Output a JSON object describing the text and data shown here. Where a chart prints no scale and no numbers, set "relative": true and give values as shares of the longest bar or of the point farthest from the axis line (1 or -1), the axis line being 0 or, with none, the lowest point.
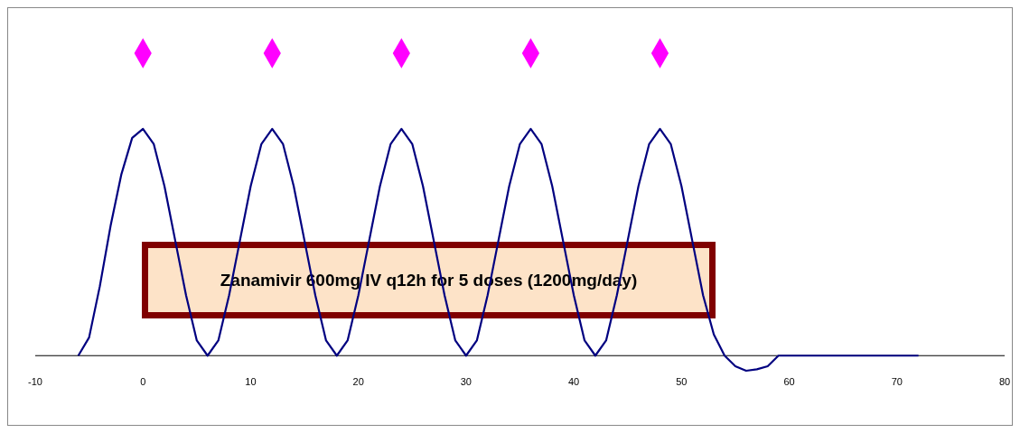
{
  "chart_data": {
    "type": "line",
    "relative": true,
    "xlim": [
      -10,
      80
    ],
    "xticks": [
      -10,
      0,
      10,
      20,
      30,
      40,
      50,
      60,
      70,
      80
    ],
    "grid": false,
    "annotations": [
      "Zanamivir 600mg IV q12h for 5 doses (1200mg/day)"
    ],
    "series": [
      {
        "color": "#000080",
        "marker": "none",
        "line_style": "solid",
        "x": [
          -6,
          -5,
          -4,
          -3,
          -2,
          -1,
          0,
          1,
          2,
          3,
          4,
          5,
          6,
          7,
          8,
          9,
          10,
          11,
          12,
          13,
          14,
          15,
          16,
          17,
          18,
          19,
          20,
          21,
          22,
          23,
          24,
          25,
          26,
          27,
          28,
          29,
          30,
          31,
          32,
          33,
          34,
          35,
          36,
          37,
          38,
          39,
          40,
          41,
          42,
          43,
          44,
          45,
          46,
          47,
          48,
          49,
          50,
          51,
          52,
          53,
          54,
          55,
          56,
          57,
          58,
          59,
          72
        ],
        "values": [
          0,
          0.06,
          0.23,
          0.43,
          0.6,
          0.72,
          0.75,
          0.7,
          0.56,
          0.38,
          0.2,
          0.05,
          0,
          0.05,
          0.2,
          0.38,
          0.56,
          0.7,
          0.75,
          0.7,
          0.56,
          0.38,
          0.2,
          0.05,
          0,
          0.05,
          0.2,
          0.38,
          0.56,
          0.7,
          0.75,
          0.7,
          0.56,
          0.38,
          0.2,
          0.05,
          0,
          0.05,
          0.2,
          0.38,
          0.56,
          0.7,
          0.75,
          0.7,
          0.56,
          0.38,
          0.2,
          0.05,
          0,
          0.05,
          0.2,
          0.38,
          0.56,
          0.7,
          0.75,
          0.7,
          0.56,
          0.38,
          0.2,
          0.07,
          0,
          -0.035,
          -0.05,
          -0.045,
          -0.035,
          0,
          0
        ]
      },
      {
        "type": "scatter",
        "color": "#ff00ff",
        "marker": "diamond",
        "x": [
          0,
          12,
          24,
          36,
          48
        ],
        "values": [
          1,
          1,
          1,
          1,
          1
        ]
      }
    ]
  }
}
